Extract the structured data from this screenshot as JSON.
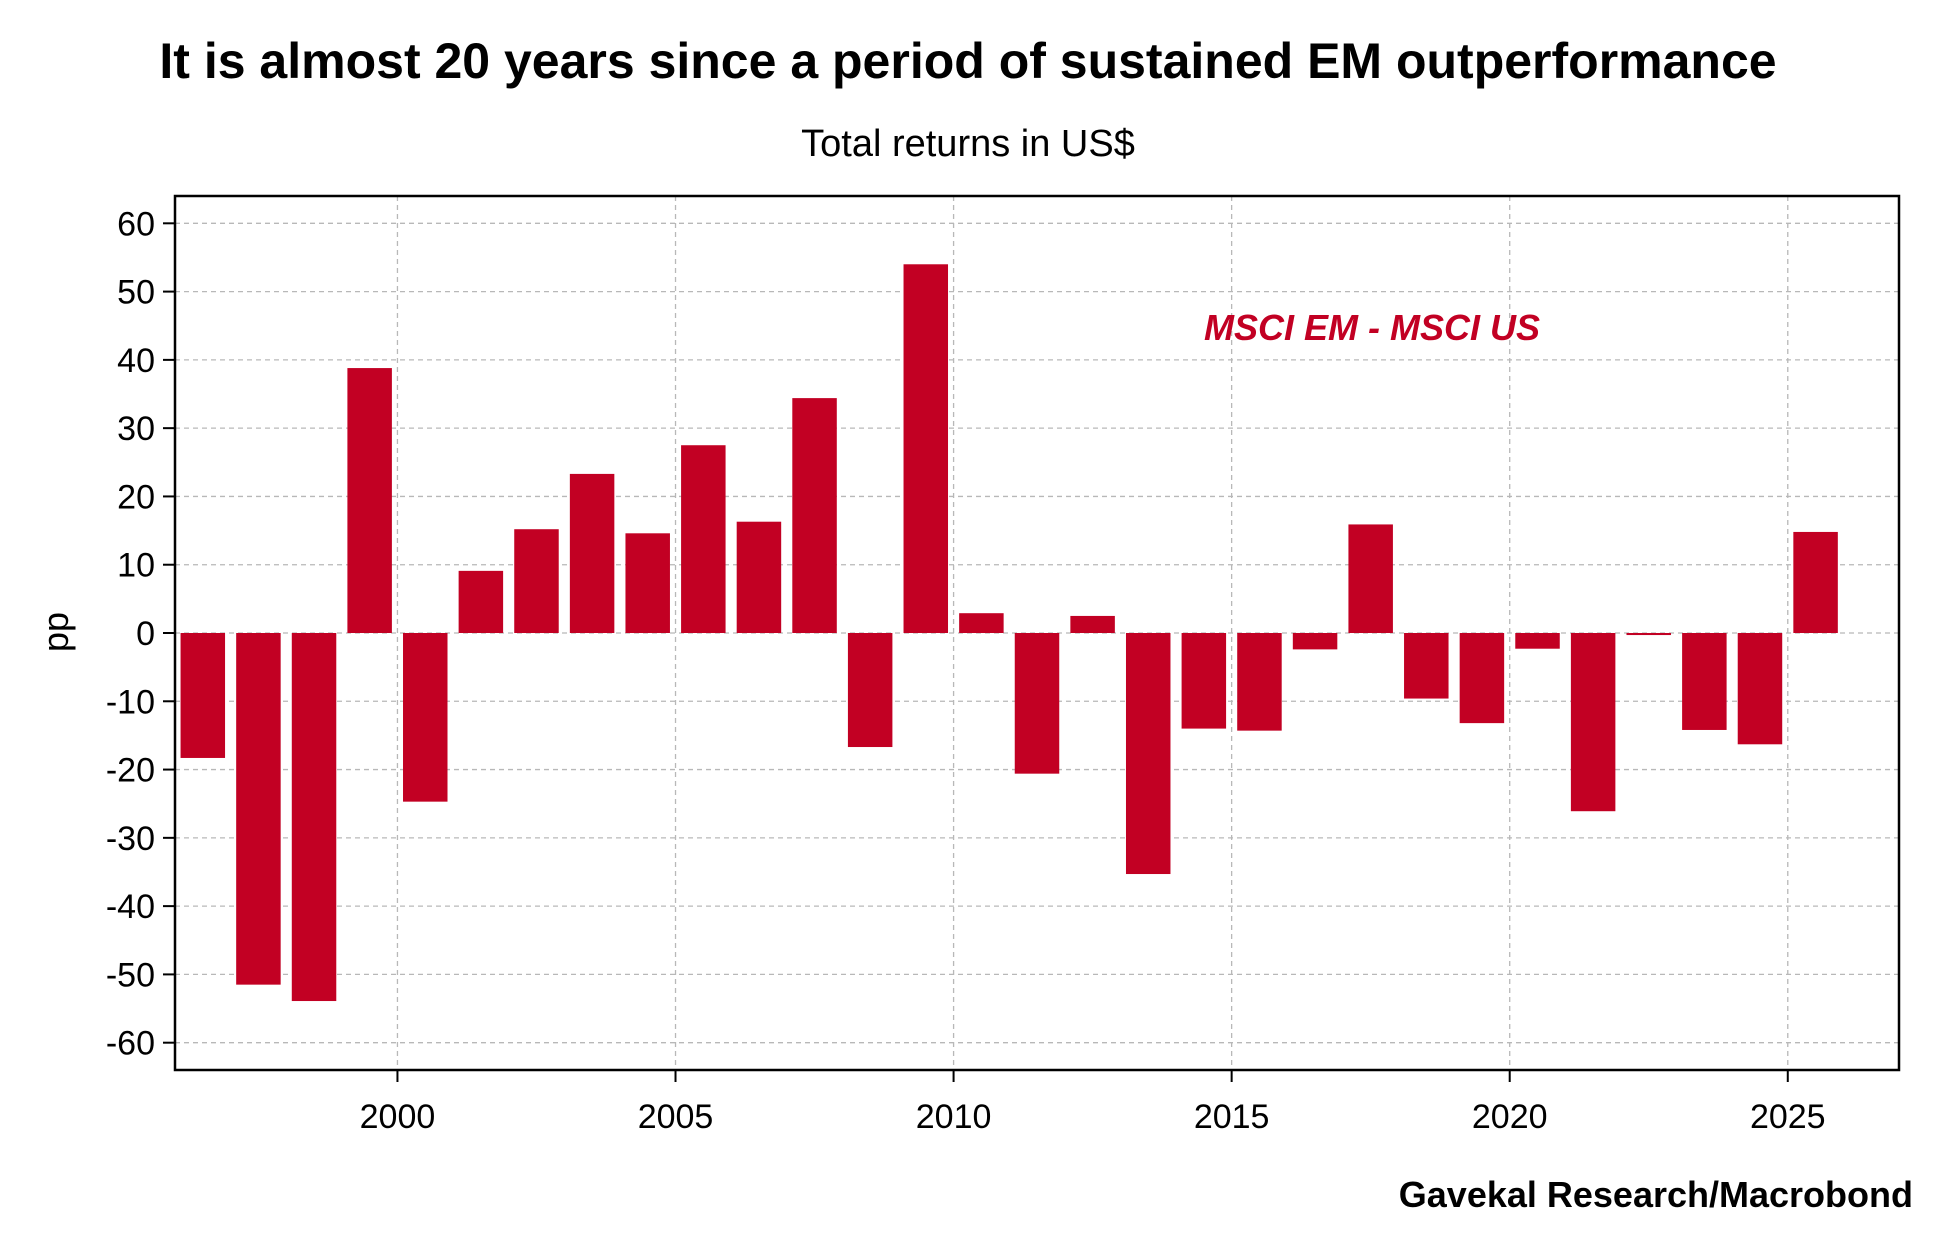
{
  "chart_data": {
    "type": "bar",
    "title": "It is almost 20 years since a period of sustained EM outperformance",
    "subtitle": "Total returns in US$",
    "ylabel": "pp",
    "xlabel": "",
    "source": "Gavekal Research/Macrobond",
    "ylim": [
      -64,
      64
    ],
    "xlim": [
      1996,
      2027
    ],
    "grid": true,
    "legend_position": "top-right",
    "bar_color": "#c20023",
    "yticks": [
      -60,
      -50,
      -40,
      -30,
      -20,
      -10,
      0,
      10,
      20,
      30,
      40,
      50,
      60
    ],
    "ytick_labels": [
      "-60",
      "-50",
      "-40",
      "-30",
      "-20",
      "-10",
      "0",
      "10",
      "20",
      "30",
      "40",
      "50",
      "60"
    ],
    "xticks": [
      2000,
      2005,
      2010,
      2015,
      2020,
      2025
    ],
    "xtick_labels": [
      "2000",
      "2005",
      "2010",
      "2015",
      "2020",
      "2025"
    ],
    "series": [
      {
        "name": "MSCI EM - MSCI US",
        "x": [
          1996,
          1997,
          1998,
          1999,
          2000,
          2001,
          2002,
          2003,
          2004,
          2005,
          2006,
          2007,
          2008,
          2009,
          2010,
          2011,
          2012,
          2013,
          2014,
          2015,
          2016,
          2017,
          2018,
          2019,
          2020,
          2021,
          2022,
          2023,
          2024,
          2025
        ],
        "values": [
          -18.3,
          -51.5,
          -53.9,
          38.8,
          -24.7,
          9.1,
          15.2,
          23.3,
          14.6,
          27.5,
          16.3,
          34.4,
          -16.7,
          54.0,
          2.9,
          -20.6,
          2.5,
          -35.3,
          -14.0,
          -14.3,
          -2.4,
          15.9,
          -9.6,
          -13.2,
          -2.3,
          -26.1,
          -0.3,
          -14.2,
          -16.3,
          14.8
        ]
      }
    ]
  }
}
